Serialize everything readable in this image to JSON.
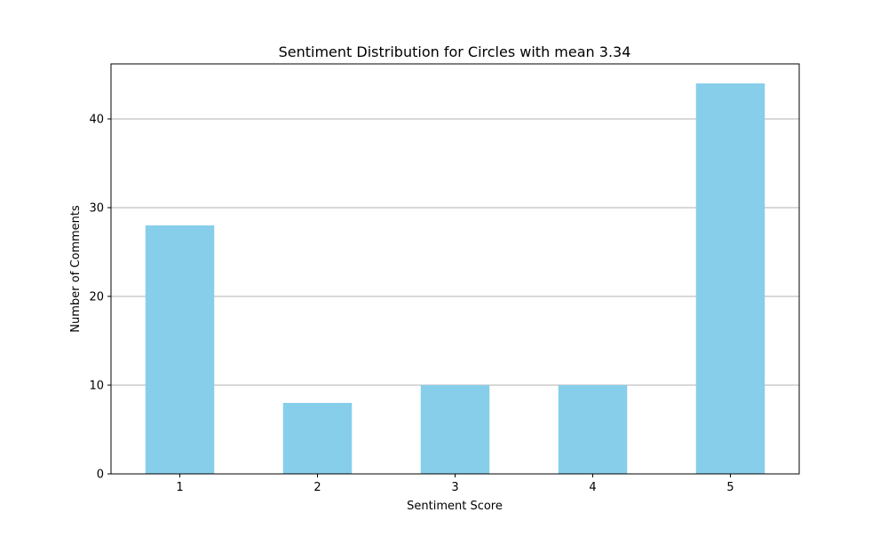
{
  "colors": {
    "bar": "#87ceeb",
    "grid": "#b0b0b0",
    "axis": "#000000",
    "background": "#ffffff"
  },
  "chart_data": {
    "type": "bar",
    "title": "Sentiment Distribution for Circles with mean 3.34",
    "xlabel": "Sentiment Score",
    "ylabel": "Number of Comments",
    "categories": [
      "1",
      "2",
      "3",
      "4",
      "5"
    ],
    "values": [
      28,
      8,
      10,
      10,
      44
    ],
    "ylim": [
      0,
      46.2
    ],
    "yticks": [
      0,
      10,
      20,
      30,
      40
    ],
    "grid": "y-major",
    "legend": "none"
  }
}
